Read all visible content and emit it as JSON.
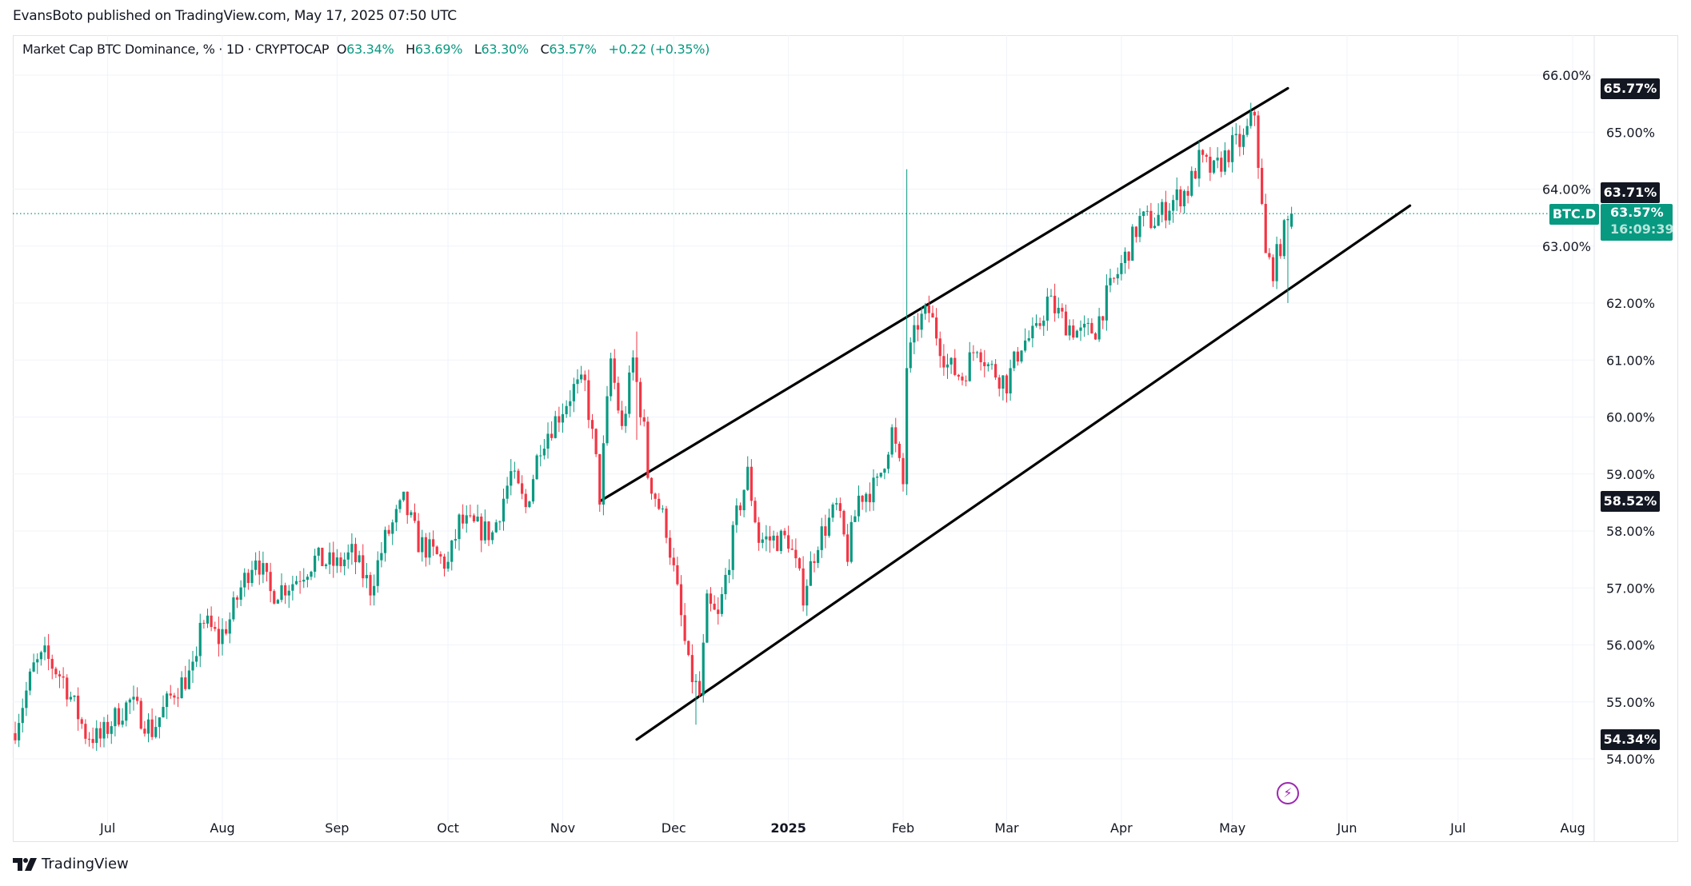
{
  "publish_line": "EvansBoto published on TradingView.com, May 17, 2025 07:50 UTC",
  "legend": {
    "title": "Market Cap BTC Dominance, % · 1D · CRYPTOCAP",
    "o_key": "O",
    "o": "63.34%",
    "h_key": "H",
    "h": "63.69%",
    "l_key": "L",
    "l": "63.30%",
    "c_key": "C",
    "c": "63.57%",
    "change": "+0.22 (+0.35%)"
  },
  "badges": {
    "upper_end": "65.77%",
    "lower_end": "63.71%",
    "upper_start": "58.52%",
    "lower_start": "54.34%"
  },
  "last": {
    "symbol": "BTC.D",
    "price": "63.57%",
    "countdown": "16:09:39"
  },
  "footer": {
    "brand": "TradingView"
  },
  "colors": {
    "up": "#089981",
    "down": "#f23645",
    "grid": "#f0f3fa",
    "trendline": "#000000",
    "alert": "#9c27b0"
  },
  "chart_data": {
    "type": "candlestick",
    "title": "Market Cap BTC Dominance, % · 1D · CRYPTOCAP",
    "start_date": "2024-06-06",
    "ylim": [
      53.5,
      66.3
    ],
    "y_ticks": [
      "54.00%",
      "55.00%",
      "56.00%",
      "57.00%",
      "58.00%",
      "59.00%",
      "60.00%",
      "61.00%",
      "62.00%",
      "63.00%",
      "64.00%",
      "65.00%",
      "66.00%"
    ],
    "y_tick_values": [
      54,
      55,
      56,
      57,
      58,
      59,
      60,
      61,
      62,
      63,
      64,
      65,
      66
    ],
    "x_ticks": [
      {
        "label": "Jul",
        "day": 25
      },
      {
        "label": "Aug",
        "day": 56
      },
      {
        "label": "Sep",
        "day": 87
      },
      {
        "label": "Oct",
        "day": 117
      },
      {
        "label": "Nov",
        "day": 148
      },
      {
        "label": "Dec",
        "day": 178
      },
      {
        "label": "2025",
        "day": 209
      },
      {
        "label": "Feb",
        "day": 240
      },
      {
        "label": "Mar",
        "day": 268
      },
      {
        "label": "Apr",
        "day": 299
      },
      {
        "label": "May",
        "day": 329
      },
      {
        "label": "Jun",
        "day": 360
      },
      {
        "label": "Jul",
        "day": 390
      },
      {
        "label": "Aug",
        "day": 421
      }
    ],
    "x_range_days": [
      -1,
      427
    ],
    "close_anchors": [
      [
        0,
        54.55
      ],
      [
        5,
        55.6
      ],
      [
        8,
        55.8
      ],
      [
        13,
        55.4
      ],
      [
        19,
        54.45
      ],
      [
        23,
        54.35
      ],
      [
        26,
        54.65
      ],
      [
        31,
        55.0
      ],
      [
        37,
        54.5
      ],
      [
        43,
        55.2
      ],
      [
        49,
        55.6
      ],
      [
        50,
        56.5
      ],
      [
        55,
        56.1
      ],
      [
        58,
        56.45
      ],
      [
        61,
        57.0
      ],
      [
        65,
        57.6
      ],
      [
        69,
        56.9
      ],
      [
        75,
        57.1
      ],
      [
        81,
        57.5
      ],
      [
        87,
        57.4
      ],
      [
        91,
        57.6
      ],
      [
        96,
        57.0
      ],
      [
        100,
        57.85
      ],
      [
        105,
        58.5
      ],
      [
        109,
        57.8
      ],
      [
        113,
        57.6
      ],
      [
        117,
        57.4
      ],
      [
        120,
        58.15
      ],
      [
        125,
        58.05
      ],
      [
        129,
        57.95
      ],
      [
        134,
        59.0
      ],
      [
        138,
        58.4
      ],
      [
        142,
        59.55
      ],
      [
        147,
        60.05
      ],
      [
        151,
        60.5
      ],
      [
        154,
        60.55
      ],
      [
        157,
        59.2
      ],
      [
        158,
        58.6
      ],
      [
        161,
        61.0
      ],
      [
        164,
        59.75
      ],
      [
        167,
        61.0
      ],
      [
        170,
        59.75
      ],
      [
        171,
        59.0
      ],
      [
        176,
        58.05
      ],
      [
        179,
        56.9
      ],
      [
        182,
        55.6
      ],
      [
        185,
        55.1
      ],
      [
        187,
        56.7
      ],
      [
        190,
        56.45
      ],
      [
        195,
        58.25
      ],
      [
        198,
        59.0
      ],
      [
        201,
        57.85
      ],
      [
        205,
        57.85
      ],
      [
        209,
        57.85
      ],
      [
        213,
        56.9
      ],
      [
        217,
        57.85
      ],
      [
        222,
        58.4
      ],
      [
        225,
        57.6
      ],
      [
        228,
        58.6
      ],
      [
        233,
        58.8
      ],
      [
        237,
        59.75
      ],
      [
        240,
        58.8
      ],
      [
        241,
        60.9
      ],
      [
        244,
        61.65
      ],
      [
        247,
        61.85
      ],
      [
        252,
        60.9
      ],
      [
        256,
        60.7
      ],
      [
        260,
        61.3
      ],
      [
        263,
        60.9
      ],
      [
        268,
        60.6
      ],
      [
        272,
        61.3
      ],
      [
        276,
        61.45
      ],
      [
        279,
        62.05
      ],
      [
        284,
        61.65
      ],
      [
        288,
        61.45
      ],
      [
        292,
        61.55
      ],
      [
        295,
        62.1
      ],
      [
        300,
        62.8
      ],
      [
        304,
        63.45
      ],
      [
        308,
        63.45
      ],
      [
        313,
        63.8
      ],
      [
        317,
        64.0
      ],
      [
        320,
        64.5
      ],
      [
        324,
        64.3
      ],
      [
        329,
        64.75
      ],
      [
        332,
        64.85
      ],
      [
        335,
        65.35
      ],
      [
        336,
        64.5
      ],
      [
        338,
        62.8
      ],
      [
        340,
        62.6
      ],
      [
        343,
        63.25
      ],
      [
        345,
        63.57
      ]
    ],
    "wick_overrides": [
      [
        241,
        64.35,
        58.7
      ],
      [
        184,
        55.2,
        54.6
      ],
      [
        168,
        61.5,
        59.6
      ],
      [
        344,
        63.5,
        62.0
      ]
    ],
    "last_candle": {
      "open": 63.34,
      "high": 63.69,
      "low": 63.3,
      "close": 63.57
    },
    "last_price": 63.57,
    "trendlines": [
      {
        "name": "upper-channel",
        "from": [
          158,
          58.52
        ],
        "to": [
          344,
          65.77
        ]
      },
      {
        "name": "lower-channel",
        "from": [
          168,
          54.34
        ],
        "to": [
          377,
          63.71
        ]
      }
    ]
  }
}
